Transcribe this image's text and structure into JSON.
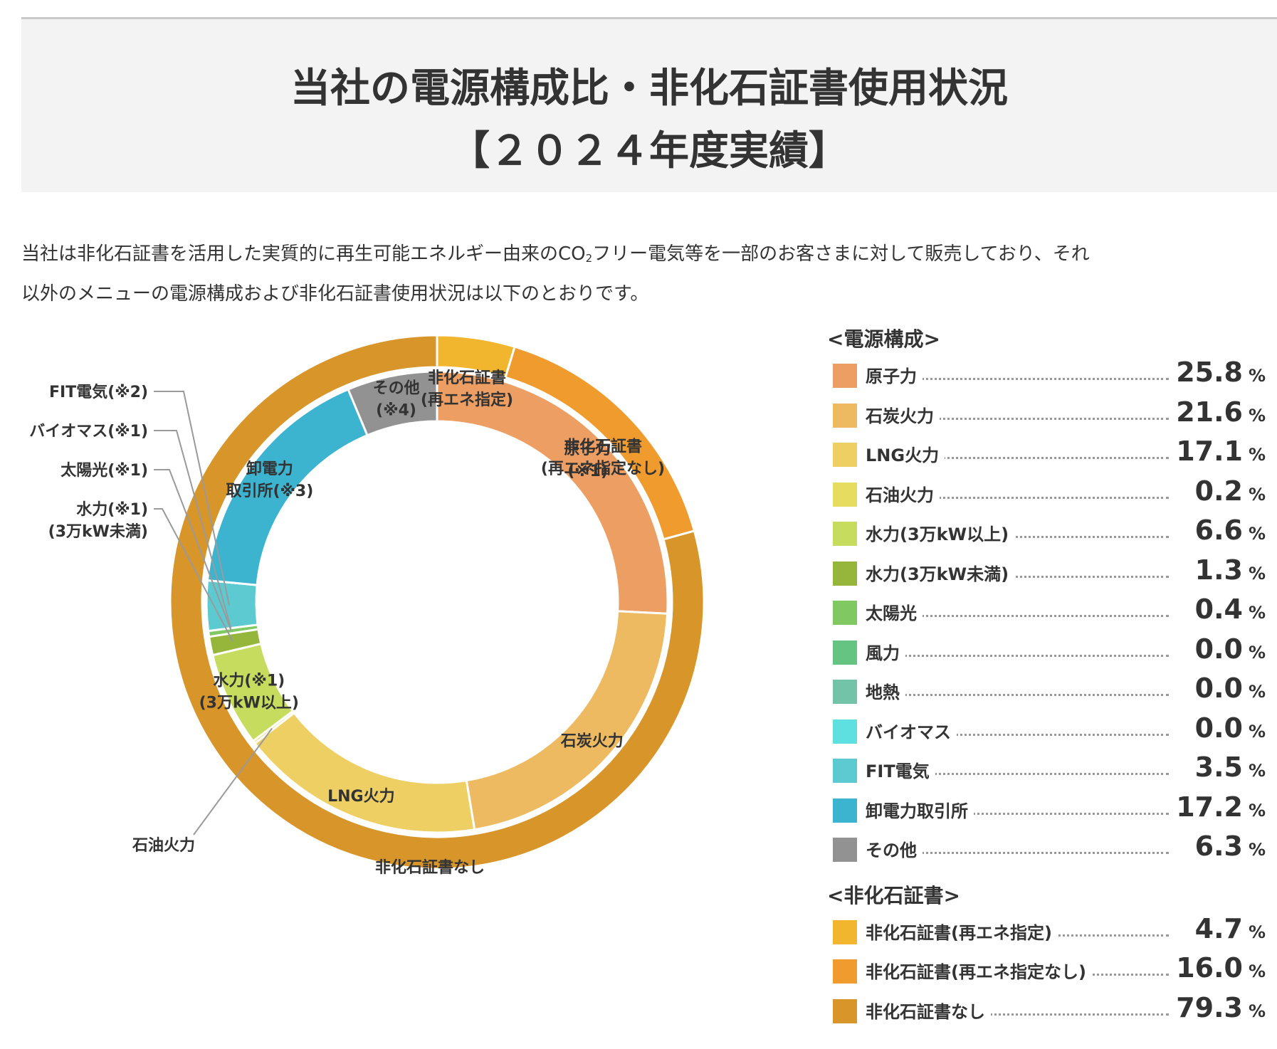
{
  "header": {
    "title_line1": "当社の電源構成比・非化石証書使用状況",
    "title_line2": "【２０２４年度実績】"
  },
  "intro": {
    "line1_before": "当社は非化石証書を活用した実質的に再生可能エネルギー由来のCO",
    "line1_sub": "2",
    "line1_after": "フリー電気等を一部のお客さまに対して販売しており、それ",
    "line2": "以外のメニューの電源構成および非化石証書使用状況は以下のとおりです。"
  },
  "chart_data": {
    "type": "donut",
    "unit": "%",
    "inner_ring": {
      "heading": "<電源構成>",
      "series": [
        {
          "name": "原子力",
          "value": 25.8,
          "color": "#ed9f63",
          "chart_label": [
            "原子力",
            "(※1)"
          ]
        },
        {
          "name": "石炭火力",
          "value": 21.6,
          "color": "#edba62",
          "chart_label": [
            "石炭火力"
          ]
        },
        {
          "name": "LNG火力",
          "value": 17.1,
          "color": "#edcf64",
          "chart_label": [
            "LNG火力"
          ]
        },
        {
          "name": "石油火力",
          "value": 0.2,
          "color": "#e5dc60",
          "chart_label": [
            "石油火力"
          ]
        },
        {
          "name": "水力(3万kW以上)",
          "value": 6.6,
          "color": "#c6dc5e",
          "chart_label": [
            "水力(※1)",
            "(3万kW以上)"
          ]
        },
        {
          "name": "水力(3万kW未満)",
          "value": 1.3,
          "color": "#95b53b",
          "chart_label": [
            "水力(※1)",
            "(3万kW未満)"
          ]
        },
        {
          "name": "太陽光",
          "value": 0.4,
          "color": "#80c861",
          "chart_label": [
            "太陽光(※1)"
          ]
        },
        {
          "name": "風力",
          "value": 0.0,
          "color": "#66c482",
          "chart_label": []
        },
        {
          "name": "地熱",
          "value": 0.0,
          "color": "#72c3a8",
          "chart_label": []
        },
        {
          "name": "バイオマス",
          "value": 0.0,
          "color": "#5fe0e0",
          "chart_label": [
            "バイオマス(※1)"
          ]
        },
        {
          "name": "FIT電気",
          "value": 3.5,
          "color": "#5ccad0",
          "chart_label": [
            "FIT電気(※2)"
          ]
        },
        {
          "name": "卸電力取引所",
          "value": 17.2,
          "color": "#3cb4d0",
          "chart_label": [
            "卸電力",
            "取引所(※3)"
          ]
        },
        {
          "name": "その他",
          "value": 6.3,
          "color": "#929292",
          "chart_label": [
            "その他",
            "(※4)"
          ]
        }
      ]
    },
    "outer_ring": {
      "heading": "<非化石証書>",
      "series": [
        {
          "name": "非化石証書(再エネ指定)",
          "value": 4.7,
          "color": "#f2b62e",
          "chart_label": [
            "非化石証書",
            "(再エネ指定)"
          ]
        },
        {
          "name": "非化石証書(再エネ指定なし)",
          "value": 16.0,
          "color": "#f09b2e",
          "chart_label": [
            "非化石証書",
            "(再エネ指定なし)"
          ]
        },
        {
          "name": "非化石証書なし",
          "value": 79.3,
          "color": "#d7952a",
          "chart_label": [
            "非化石証書なし"
          ]
        }
      ]
    }
  }
}
